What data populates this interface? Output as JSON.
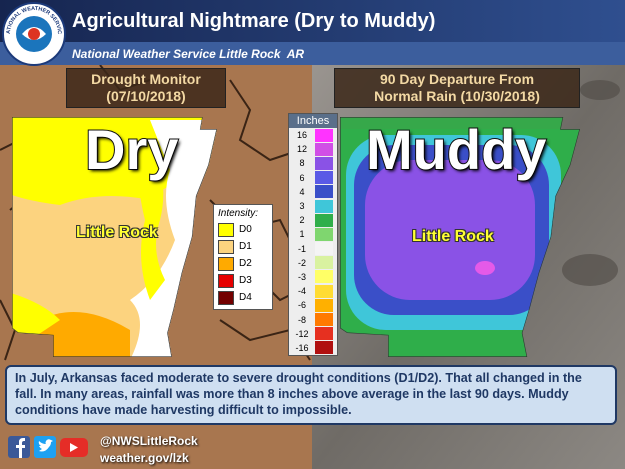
{
  "header": {
    "logo_text": "NATIONAL WEATHER SERVICE",
    "title": "Agricultural Nightmare (Dry to Muddy)",
    "subtitle": "National Weather Service Little Rock  AR"
  },
  "left_panel": {
    "title_lines": [
      "Drought Monitor",
      "(07/10/2018)"
    ],
    "big_word": "Dry",
    "map_label": "Little Rock",
    "legend": {
      "title": "Intensity:",
      "items": [
        "D0",
        "D1",
        "D2",
        "D3",
        "D4"
      ]
    }
  },
  "right_panel": {
    "title_lines": [
      "90 Day Departure From",
      "Normal Rain (10/30/2018)"
    ],
    "big_word": "Muddy",
    "map_label": "Little Rock",
    "legend": {
      "title": "Inches",
      "items": [
        "16",
        "12",
        "8",
        "6",
        "4",
        "3",
        "2",
        "1",
        "-1",
        "-2",
        "-3",
        "-4",
        "-6",
        "-8",
        "-12",
        "-16"
      ]
    }
  },
  "description": "In July, Arkansas faced moderate to severe drought conditions (D1/D2). That all changed in the fall. In many areas, rainfall was more than 8 inches above average in the last 90 days. Muddy conditions have made harvesting difficult to impossible.",
  "footer": {
    "handle": "@NWSLittleRock",
    "url": "weather.gov/lzk"
  }
}
